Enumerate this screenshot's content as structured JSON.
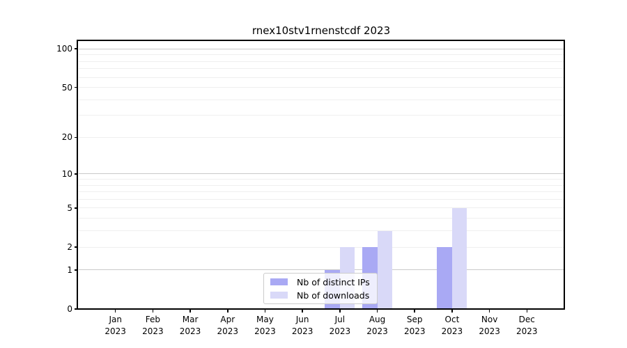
{
  "title": "rnex10stv1rnenstcdf 2023",
  "colors": {
    "background": "#ffffff",
    "bar_distinct_ips": "#a9a9f4",
    "bar_downloads": "#d9d9f8",
    "grid_major": "#c9c9c9",
    "grid_minor": "#efefef",
    "axis_spine": "#000000",
    "text": "#000000",
    "legend_border": "#cccccc"
  },
  "legend": {
    "items": [
      {
        "label": "Nb of distinct IPs"
      },
      {
        "label": "Nb of downloads"
      }
    ]
  },
  "chart_data": {
    "type": "bar",
    "title": "rnex10stv1rnenstcdf 2023",
    "categories": [
      "Jan",
      "Feb",
      "Mar",
      "Apr",
      "May",
      "Jun",
      "Jul",
      "Aug",
      "Sep",
      "Oct",
      "Nov",
      "Dec"
    ],
    "year_label": "2023",
    "series": [
      {
        "name": "Nb of distinct IPs",
        "color": "#a9a9f4",
        "values": [
          0,
          0,
          0,
          0,
          0,
          0,
          1,
          2,
          0,
          2,
          0,
          0
        ]
      },
      {
        "name": "Nb of downloads",
        "color": "#d9d9f8",
        "values": [
          0,
          0,
          0,
          0,
          0,
          0,
          2,
          3,
          0,
          5,
          0,
          0
        ]
      }
    ],
    "xlabel": "",
    "ylabel": "",
    "y_axis": {
      "scale": "log1p",
      "lim": [
        0,
        115
      ],
      "tick_values": [
        0,
        1,
        2,
        5,
        10,
        20,
        50,
        100
      ],
      "major_grid_values": [
        1,
        10,
        100
      ],
      "minor_grid_values": [
        2,
        3,
        4,
        5,
        6,
        7,
        8,
        9,
        20,
        30,
        40,
        50,
        60,
        70,
        80,
        90
      ]
    },
    "grid": true,
    "legend_position": "lower center, inside axes"
  }
}
